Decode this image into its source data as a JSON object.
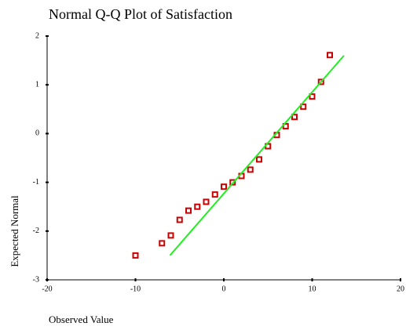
{
  "chart_data": {
    "type": "scatter",
    "title": "Normal Q-Q Plot of Satisfaction",
    "x_label": "Observed Value",
    "y_label": "Expected Normal",
    "xlim": [
      -20,
      20
    ],
    "xticks": [
      -20,
      -10,
      0,
      10,
      20
    ],
    "ylim": [
      -3,
      2
    ],
    "yticks": [
      -3,
      -2,
      -1,
      0,
      1,
      2
    ],
    "series": [
      {
        "color": "#cc0000",
        "marker": "hollow-square",
        "x": [
          -10,
          -7,
          -6,
          -5,
          -4,
          -3,
          -2,
          -1,
          0,
          1,
          2,
          3,
          4,
          5,
          6,
          7,
          8,
          9,
          10,
          11,
          12
        ],
        "values": [
          -2.5,
          -2.25,
          -2.09,
          -1.77,
          -1.58,
          -1.5,
          -1.4,
          -1.25,
          -1.09,
          -1.0,
          -0.87,
          -0.74,
          -0.53,
          -0.26,
          -0.03,
          0.15,
          0.34,
          0.55,
          0.76,
          1.06,
          1.61
        ]
      },
      {
        "color": "#22ee22",
        "style": "line",
        "x": [
          -6.1,
          13.6
        ],
        "values": [
          -2.5,
          1.6
        ]
      }
    ]
  }
}
